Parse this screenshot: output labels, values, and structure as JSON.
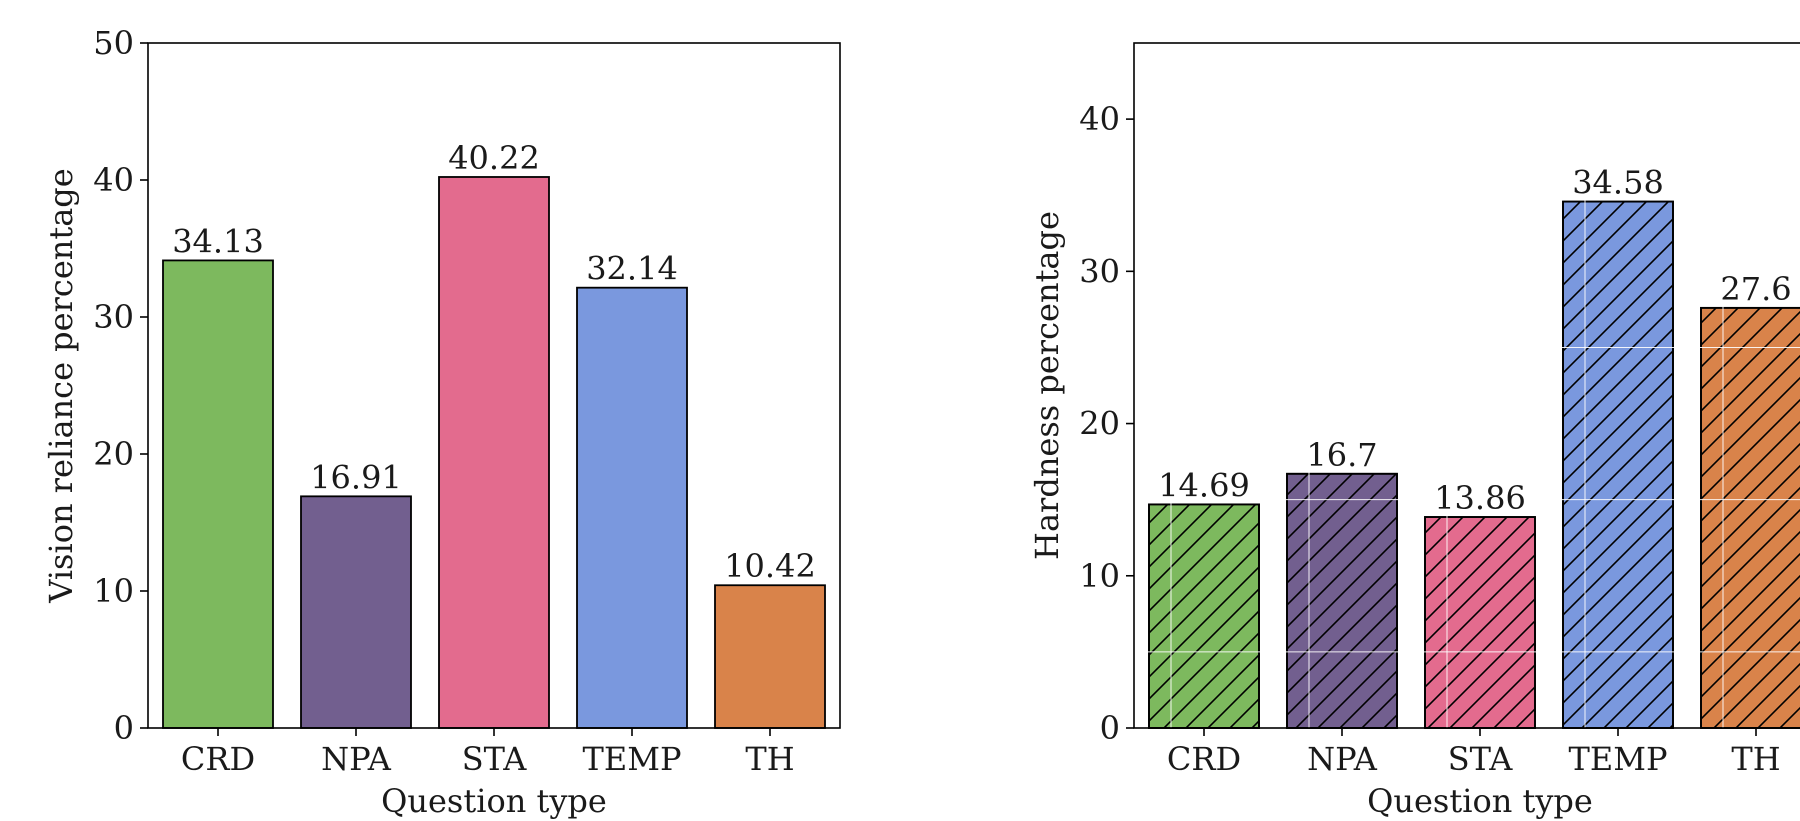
{
  "chart_data": [
    {
      "type": "bar",
      "categories": [
        "CRD",
        "NPA",
        "STA",
        "TEMP",
        "TH"
      ],
      "values": [
        34.13,
        16.91,
        40.22,
        32.14,
        10.42
      ],
      "value_labels": [
        "34.13",
        "16.91",
        "40.22",
        "32.14",
        "10.42"
      ],
      "xlabel": "Question type",
      "ylabel": "Vision reliance percentage",
      "ylim": [
        0,
        50
      ],
      "yticks": [
        0,
        10,
        20,
        30,
        40,
        50
      ],
      "grid": false,
      "hatch": false,
      "colors": [
        "#7db95e",
        "#725f8f",
        "#e36b8e",
        "#7a98de",
        "#d9834a"
      ]
    },
    {
      "type": "bar",
      "categories": [
        "CRD",
        "NPA",
        "STA",
        "TEMP",
        "TH"
      ],
      "values": [
        14.69,
        16.7,
        13.86,
        34.58,
        27.6
      ],
      "value_labels": [
        "14.69",
        "16.7",
        "13.86",
        "34.58",
        "27.6"
      ],
      "xlabel": "Question type",
      "ylabel": "Hardness percentage",
      "ylim": [
        0,
        45
      ],
      "yticks": [
        0,
        10,
        20,
        30,
        40
      ],
      "grid": true,
      "hatch": true,
      "colors": [
        "#7db95e",
        "#725f8f",
        "#e36b8e",
        "#7a98de",
        "#d9834a"
      ]
    }
  ]
}
